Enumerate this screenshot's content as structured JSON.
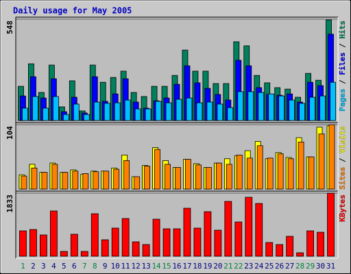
{
  "chart_data": [
    {
      "type": "bar",
      "title": "Daily usage for May 2005",
      "ylim": [
        0,
        548
      ],
      "yticks": [
        548
      ],
      "legend_separator": " / ",
      "series": [
        {
          "name": "Hits",
          "color": "#00805c",
          "values": [
            185,
            307,
            152,
            300,
            74,
            215,
            52,
            300,
            207,
            233,
            267,
            152,
            130,
            185,
            185,
            244,
            381,
            267,
            267,
            200,
            200,
            426,
            404,
            244,
            204,
            178,
            170,
            126,
            255,
            218,
            544
          ]
        },
        {
          "name": "Files",
          "color": "#0000ff",
          "values": [
            133,
            237,
            122,
            226,
            48,
            126,
            41,
            237,
            104,
            144,
            226,
            100,
            67,
            107,
            122,
            196,
            296,
            204,
            174,
            141,
            111,
            326,
            296,
            178,
            141,
            137,
            144,
            100,
            207,
            189,
            467
          ]
        },
        {
          "name": "Pages",
          "color": "#00c0ff",
          "values": [
            67,
            130,
            67,
            130,
            33,
            89,
            33,
            100,
            93,
            96,
            111,
            63,
            63,
            104,
            96,
            115,
            122,
            96,
            100,
            89,
            70,
            156,
            156,
            152,
            144,
            133,
            111,
            93,
            126,
            133,
            207
          ]
        }
      ]
    },
    {
      "type": "bar",
      "ylim": [
        0,
        104
      ],
      "yticks": [
        104
      ],
      "legend_separator": " / ",
      "series": [
        {
          "name": "Visits",
          "color": "#ffff00",
          "values": [
            23,
            40,
            27,
            42,
            27,
            31,
            24,
            29,
            29,
            34,
            55,
            20,
            38,
            67,
            46,
            35,
            48,
            41,
            35,
            42,
            49,
            54,
            62,
            77,
            49,
            59,
            51,
            83,
            52,
            100,
            102
          ]
        },
        {
          "name": "Sites",
          "color": "#ff8000",
          "values": [
            21,
            34,
            27,
            40,
            27,
            29,
            25,
            28,
            29,
            32,
            46,
            20,
            37,
            64,
            40,
            35,
            48,
            39,
            35,
            42,
            40,
            55,
            50,
            70,
            50,
            57,
            49,
            76,
            52,
            89,
            104
          ]
        }
      ]
    },
    {
      "type": "bar",
      "ylim": [
        0,
        1833
      ],
      "yticks": [
        1833
      ],
      "series": [
        {
          "name": "KBytes",
          "color": "#ff0000",
          "values": [
            737,
            777,
            618,
            1315,
            139,
            638,
            139,
            1235,
            478,
            817,
            1096,
            418,
            339,
            1076,
            797,
            797,
            1395,
            817,
            1295,
            757,
            1594,
            996,
            1714,
            1534,
            398,
            339,
            578,
            100,
            737,
            697,
            1833
          ]
        }
      ],
      "categories": [
        "1",
        "2",
        "3",
        "4",
        "5",
        "6",
        "7",
        "8",
        "9",
        "10",
        "11",
        "12",
        "13",
        "14",
        "15",
        "16",
        "17",
        "18",
        "19",
        "20",
        "21",
        "22",
        "23",
        "24",
        "25",
        "26",
        "27",
        "28",
        "29",
        "30",
        "31"
      ],
      "category_colors": [
        "#008040",
        "#000080",
        "#000080",
        "#000080",
        "#000080",
        "#000080",
        "#008040",
        "#008040",
        "#000080",
        "#000080",
        "#000080",
        "#000080",
        "#000080",
        "#008040",
        "#008040",
        "#000080",
        "#000080",
        "#000080",
        "#000080",
        "#000080",
        "#008040",
        "#008040",
        "#000080",
        "#000080",
        "#000080",
        "#000080",
        "#000080",
        "#008040",
        "#008040",
        "#000080",
        "#000080"
      ]
    }
  ]
}
